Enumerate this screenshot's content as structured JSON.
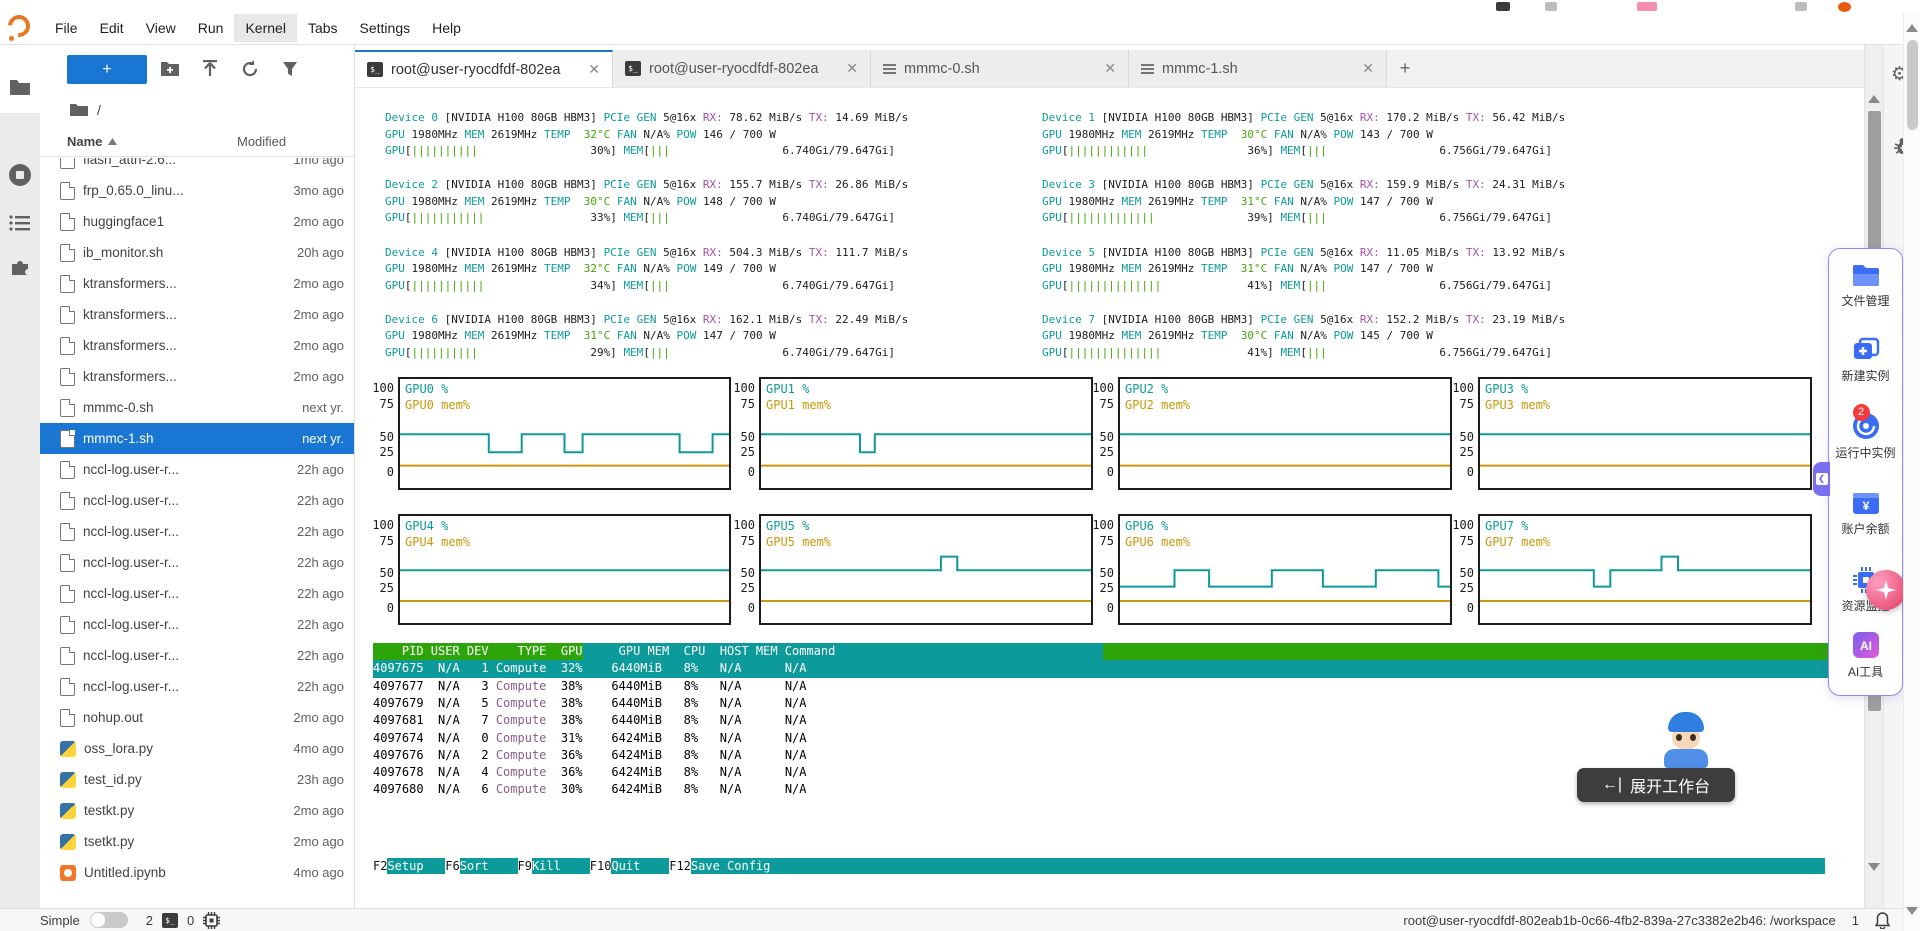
{
  "menu": {
    "items": [
      "File",
      "Edit",
      "View",
      "Run",
      "Kernel",
      "Tabs",
      "Settings",
      "Help"
    ],
    "active_item": "Kernel"
  },
  "file_browser": {
    "new_button_label": "+",
    "breadcrumb": "/",
    "columns": {
      "name": "Name",
      "modified": "Modified"
    },
    "files": [
      {
        "name": "flash_attn-2.6...",
        "modified": "1mo ago",
        "type": "doc",
        "partial": true
      },
      {
        "name": "frp_0.65.0_linu...",
        "modified": "3mo ago",
        "type": "doc"
      },
      {
        "name": "huggingface1",
        "modified": "2mo ago",
        "type": "doc"
      },
      {
        "name": "ib_monitor.sh",
        "modified": "20h ago",
        "type": "doc"
      },
      {
        "name": "ktransformers...",
        "modified": "2mo ago",
        "type": "doc"
      },
      {
        "name": "ktransformers...",
        "modified": "2mo ago",
        "type": "doc"
      },
      {
        "name": "ktransformers...",
        "modified": "2mo ago",
        "type": "doc"
      },
      {
        "name": "ktransformers...",
        "modified": "2mo ago",
        "type": "doc"
      },
      {
        "name": "mmmc-0.sh",
        "modified": "next yr.",
        "type": "doc"
      },
      {
        "name": "mmmc-1.sh",
        "modified": "next yr.",
        "type": "doc",
        "selected": true
      },
      {
        "name": "nccl-log.user-r...",
        "modified": "22h ago",
        "type": "doc"
      },
      {
        "name": "nccl-log.user-r...",
        "modified": "22h ago",
        "type": "doc"
      },
      {
        "name": "nccl-log.user-r...",
        "modified": "22h ago",
        "type": "doc"
      },
      {
        "name": "nccl-log.user-r...",
        "modified": "22h ago",
        "type": "doc"
      },
      {
        "name": "nccl-log.user-r...",
        "modified": "22h ago",
        "type": "doc"
      },
      {
        "name": "nccl-log.user-r...",
        "modified": "22h ago",
        "type": "doc"
      },
      {
        "name": "nccl-log.user-r...",
        "modified": "22h ago",
        "type": "doc"
      },
      {
        "name": "nccl-log.user-r...",
        "modified": "22h ago",
        "type": "doc"
      },
      {
        "name": "nohup.out",
        "modified": "2mo ago",
        "type": "doc"
      },
      {
        "name": "oss_lora.py",
        "modified": "4mo ago",
        "type": "python"
      },
      {
        "name": "test_id.py",
        "modified": "23h ago",
        "type": "python"
      },
      {
        "name": "testkt.py",
        "modified": "2mo ago",
        "type": "python"
      },
      {
        "name": "tsetkt.py",
        "modified": "2mo ago",
        "type": "python"
      },
      {
        "name": "Untitled.ipynb",
        "modified": "4mo ago",
        "type": "notebook"
      }
    ]
  },
  "tabs": [
    {
      "label": "root@user-ryocdfdf-802ea",
      "icon": "terminal",
      "active": true
    },
    {
      "label": "root@user-ryocdfdf-802ea",
      "icon": "terminal",
      "active": false
    },
    {
      "label": "mmmc-0.sh",
      "icon": "shell-file",
      "active": false
    },
    {
      "label": "mmmc-1.sh",
      "icon": "shell-file",
      "active": false
    }
  ],
  "tab_add_label": "+",
  "terminal": {
    "gpu_name": "NVIDIA H100 80GB HBM3",
    "pcie_label": "PCIe GEN",
    "pcie_gen": "5@16x",
    "gpu_clock": "1980MHz",
    "mem_clock": "2619MHz",
    "fan": "N/A%",
    "pow_max": "700 W",
    "mem_total": "79.647Gi",
    "devices": [
      {
        "index": 0,
        "rx": "78.62 MiB/s",
        "tx": "14.69 MiB/s",
        "temp": "32°C",
        "pow": "146",
        "util": 30,
        "mem_used": "6.740Gi"
      },
      {
        "index": 1,
        "rx": "170.2 MiB/s",
        "tx": "56.42 MiB/s",
        "temp": "30°C",
        "pow": "143",
        "util": 36,
        "mem_used": "6.756Gi"
      },
      {
        "index": 2,
        "rx": "155.7 MiB/s",
        "tx": "26.86 MiB/s",
        "temp": "30°C",
        "pow": "148",
        "util": 33,
        "mem_used": "6.740Gi"
      },
      {
        "index": 3,
        "rx": "159.9 MiB/s",
        "tx": "24.31 MiB/s",
        "temp": "31°C",
        "pow": "147",
        "util": 39,
        "mem_used": "6.756Gi"
      },
      {
        "index": 4,
        "rx": "504.3 MiB/s",
        "tx": "111.7 MiB/s",
        "temp": "32°C",
        "pow": "149",
        "util": 34,
        "mem_used": "6.740Gi"
      },
      {
        "index": 5,
        "rx": "11.05 MiB/s",
        "tx": "13.92 MiB/s",
        "temp": "31°C",
        "pow": "147",
        "util": 41,
        "mem_used": "6.756Gi"
      },
      {
        "index": 6,
        "rx": "162.1 MiB/s",
        "tx": "22.49 MiB/s",
        "temp": "31°C",
        "pow": "147",
        "util": 29,
        "mem_used": "6.740Gi"
      },
      {
        "index": 7,
        "rx": "152.2 MiB/s",
        "tx": "23.19 MiB/s",
        "temp": "30°C",
        "pow": "145",
        "util": 41,
        "mem_used": "6.756Gi"
      }
    ],
    "process_table": {
      "headers": [
        "PID",
        "USER",
        "DEV",
        "TYPE",
        "GPU",
        "GPU MEM",
        "CPU",
        "HOST MEM",
        "Command"
      ],
      "rows": [
        [
          "4097675",
          "N/A",
          "1",
          "Compute",
          "32%",
          "6440MiB",
          "8%",
          "N/A",
          "N/A"
        ],
        [
          "4097677",
          "N/A",
          "3",
          "Compute",
          "38%",
          "6440MiB",
          "8%",
          "N/A",
          "N/A"
        ],
        [
          "4097679",
          "N/A",
          "5",
          "Compute",
          "38%",
          "6440MiB",
          "8%",
          "N/A",
          "N/A"
        ],
        [
          "4097681",
          "N/A",
          "7",
          "Compute",
          "38%",
          "6440MiB",
          "8%",
          "N/A",
          "N/A"
        ],
        [
          "4097674",
          "N/A",
          "0",
          "Compute",
          "31%",
          "6424MiB",
          "8%",
          "N/A",
          "N/A"
        ],
        [
          "4097676",
          "N/A",
          "2",
          "Compute",
          "36%",
          "6424MiB",
          "8%",
          "N/A",
          "N/A"
        ],
        [
          "4097678",
          "N/A",
          "4",
          "Compute",
          "36%",
          "6424MiB",
          "8%",
          "N/A",
          "N/A"
        ],
        [
          "4097680",
          "N/A",
          "6",
          "Compute",
          "30%",
          "6424MiB",
          "8%",
          "N/A",
          "N/A"
        ]
      ],
      "highlighted_row": 0
    },
    "fkeys": [
      {
        "key": "F2",
        "label": "Setup"
      },
      {
        "key": "F6",
        "label": "Sort"
      },
      {
        "key": "F9",
        "label": "Kill"
      },
      {
        "key": "F10",
        "label": "Quit"
      },
      {
        "key": "F12",
        "label": "Save Config"
      }
    ]
  },
  "chart_data": [
    {
      "type": "line",
      "title": "GPU0 %",
      "mem_label": "GPU0 mem%",
      "ylim": [
        0,
        100
      ],
      "yticks": [
        100,
        75,
        50,
        25,
        0
      ],
      "gpu_points": [
        [
          0,
          52
        ],
        [
          0.27,
          52
        ],
        [
          0.27,
          24
        ],
        [
          0.37,
          24
        ],
        [
          0.37,
          52
        ],
        [
          0.5,
          52
        ],
        [
          0.5,
          24
        ],
        [
          0.555,
          24
        ],
        [
          0.555,
          52
        ],
        [
          0.85,
          52
        ],
        [
          0.85,
          24
        ],
        [
          0.95,
          24
        ],
        [
          0.95,
          52
        ],
        [
          1,
          52
        ]
      ],
      "mem_points": [
        [
          0,
          7
        ],
        [
          1,
          7
        ]
      ]
    },
    {
      "type": "line",
      "title": "GPU1 %",
      "mem_label": "GPU1 mem%",
      "ylim": [
        0,
        100
      ],
      "yticks": [
        100,
        75,
        50,
        25,
        0
      ],
      "gpu_points": [
        [
          0,
          52
        ],
        [
          0.3,
          52
        ],
        [
          0.3,
          24
        ],
        [
          0.345,
          24
        ],
        [
          0.345,
          52
        ],
        [
          1,
          52
        ]
      ],
      "mem_points": [
        [
          0,
          7
        ],
        [
          1,
          7
        ]
      ]
    },
    {
      "type": "line",
      "title": "GPU2 %",
      "mem_label": "GPU2 mem%",
      "ylim": [
        0,
        100
      ],
      "yticks": [
        100,
        75,
        50,
        25,
        0
      ],
      "gpu_points": [
        [
          0,
          52
        ],
        [
          1,
          52
        ]
      ],
      "mem_points": [
        [
          0,
          7
        ],
        [
          1,
          7
        ]
      ]
    },
    {
      "type": "line",
      "title": "GPU3 %",
      "mem_label": "GPU3 mem%",
      "ylim": [
        0,
        100
      ],
      "yticks": [
        100,
        75,
        50,
        25,
        0
      ],
      "gpu_points": [
        [
          0,
          52
        ],
        [
          1,
          52
        ]
      ],
      "mem_points": [
        [
          0,
          7
        ],
        [
          1,
          7
        ]
      ]
    },
    {
      "type": "line",
      "title": "GPU4 %",
      "mem_label": "GPU4 mem%",
      "ylim": [
        0,
        100
      ],
      "yticks": [
        100,
        75,
        50,
        25,
        0
      ],
      "gpu_points": [
        [
          0,
          52
        ],
        [
          1,
          52
        ]
      ],
      "mem_points": [
        [
          0,
          7
        ],
        [
          1,
          7
        ]
      ]
    },
    {
      "type": "line",
      "title": "GPU5 %",
      "mem_label": "GPU5 mem%",
      "ylim": [
        0,
        100
      ],
      "yticks": [
        100,
        75,
        50,
        25,
        0
      ],
      "gpu_points": [
        [
          0,
          52
        ],
        [
          0.545,
          52
        ],
        [
          0.545,
          63
        ],
        [
          0.595,
          63
        ],
        [
          0.595,
          52
        ],
        [
          1,
          52
        ]
      ],
      "mem_points": [
        [
          0,
          7
        ],
        [
          1,
          7
        ]
      ]
    },
    {
      "type": "line",
      "title": "GPU6 %",
      "mem_label": "GPU6 mem%",
      "ylim": [
        0,
        100
      ],
      "yticks": [
        100,
        75,
        50,
        25,
        0
      ],
      "gpu_points": [
        [
          0,
          26
        ],
        [
          0.165,
          26
        ],
        [
          0.165,
          52
        ],
        [
          0.27,
          52
        ],
        [
          0.27,
          26
        ],
        [
          0.46,
          26
        ],
        [
          0.46,
          52
        ],
        [
          0.615,
          52
        ],
        [
          0.615,
          26
        ],
        [
          0.775,
          26
        ],
        [
          0.775,
          52
        ],
        [
          0.965,
          52
        ],
        [
          0.965,
          26
        ],
        [
          1,
          26
        ]
      ],
      "mem_points": [
        [
          0,
          7
        ],
        [
          1,
          7
        ]
      ]
    },
    {
      "type": "line",
      "title": "GPU7 %",
      "mem_label": "GPU7 mem%",
      "ylim": [
        0,
        100
      ],
      "yticks": [
        100,
        75,
        50,
        25,
        0
      ],
      "gpu_points": [
        [
          0,
          52
        ],
        [
          0.345,
          52
        ],
        [
          0.345,
          26
        ],
        [
          0.395,
          26
        ],
        [
          0.395,
          52
        ],
        [
          0.55,
          52
        ],
        [
          0.55,
          63
        ],
        [
          0.6,
          63
        ],
        [
          0.6,
          52
        ],
        [
          1,
          52
        ]
      ],
      "mem_points": [
        [
          0,
          7
        ],
        [
          1,
          7
        ]
      ]
    }
  ],
  "right_panel": {
    "items": [
      {
        "icon": "folder",
        "label": "文件管理"
      },
      {
        "icon": "new-instance",
        "label": "新建实例"
      },
      {
        "icon": "running",
        "label": "运行中实例",
        "badge": "2"
      },
      {
        "icon": "wallet",
        "label": "账户余额"
      },
      {
        "icon": "chip",
        "label": "资源监控"
      },
      {
        "icon": "ai",
        "label": "AI工具"
      }
    ]
  },
  "workbench_button": {
    "arrow": "←|",
    "label": "展开工作台"
  },
  "status_bar": {
    "mode_label": "Simple",
    "terminal_count": "2",
    "kernel_count": "0",
    "host_path": "root@user-ryocdfdf-802eab1b-0c66-4fb2-839a-27c3382e2b46: /workspace",
    "notification_count": "1"
  },
  "colors": {
    "accent_blue": "#1976d2",
    "teal": "#0d9a9a",
    "green": "#44a30a",
    "header_green": "#2ea40b",
    "magenta": "#a84fa8",
    "mem_line": "#c8980e",
    "badge_red": "#f23c3c"
  }
}
